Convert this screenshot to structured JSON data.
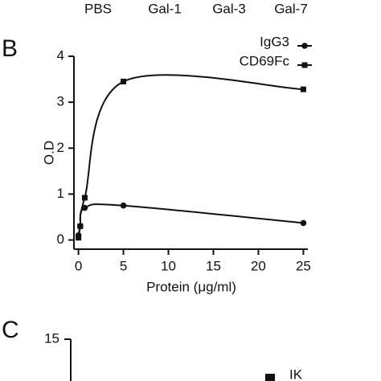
{
  "column_labels": [
    "PBS",
    "Gal-1",
    "Gal-3",
    "Gal-7"
  ],
  "chart_data": {
    "type": "line",
    "panel": "B",
    "ylabel": "O.D",
    "xlabel": "Protein (μg/ml)",
    "x": [
      0,
      0.2,
      0.7,
      5,
      25
    ],
    "series": [
      {
        "name": "IgG3",
        "color": "#111111",
        "marker": "circle",
        "values": [
          0.1,
          0.3,
          0.7,
          0.75,
          0.37
        ]
      },
      {
        "name": "CD69Fc",
        "color": "#111111",
        "marker": "square",
        "values": [
          0.05,
          0.3,
          0.92,
          3.45,
          3.28
        ]
      }
    ],
    "xlim": [
      -0.5,
      25.5
    ],
    "xticks": [
      0,
      5,
      10,
      15,
      20,
      25
    ],
    "ylim": [
      -0.2,
      4
    ],
    "yticks": [
      0,
      1,
      2,
      3,
      4
    ],
    "legend": "top-right"
  },
  "panel_c": {
    "label": "C",
    "ytick_label": "15",
    "legend_label": "IK"
  }
}
